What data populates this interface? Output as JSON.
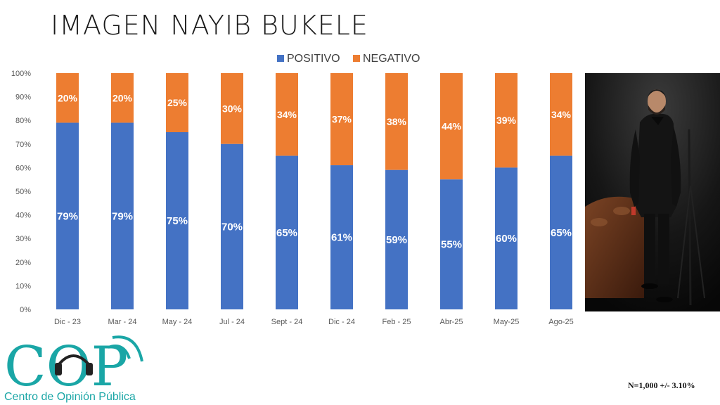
{
  "title": "IMAGEN NAYIB BUKELE",
  "footnote": "N=1,000 +/- 3.10%",
  "logo": {
    "letters": "COP",
    "text": "Centro de Opinión Pública",
    "color": "#1aa6a6"
  },
  "chart_data": {
    "type": "bar",
    "stacked": true,
    "percent": true,
    "categories": [
      "Dic - 23",
      "Mar - 24",
      "May - 24",
      "Jul - 24",
      "Sept - 24",
      "Dic - 24",
      "Feb - 25",
      "Abr-25",
      "May-25",
      "Ago-25"
    ],
    "series": [
      {
        "name": "POSITIVO",
        "color": "#4472c4",
        "values": [
          79,
          79,
          75,
          70,
          65,
          61,
          59,
          55,
          60,
          65
        ]
      },
      {
        "name": "NEGATIVO",
        "color": "#ed7d31",
        "values": [
          20,
          20,
          25,
          30,
          34,
          37,
          38,
          44,
          39,
          34
        ]
      }
    ],
    "y_ticks": [
      "0%",
      "10%",
      "20%",
      "30%",
      "40%",
      "50%",
      "60%",
      "70%",
      "80%",
      "90%",
      "100%"
    ],
    "ylim": [
      0,
      100
    ],
    "legend": "top-center",
    "grid": false
  },
  "photo": {
    "name": "nayib-bukele-photo"
  }
}
